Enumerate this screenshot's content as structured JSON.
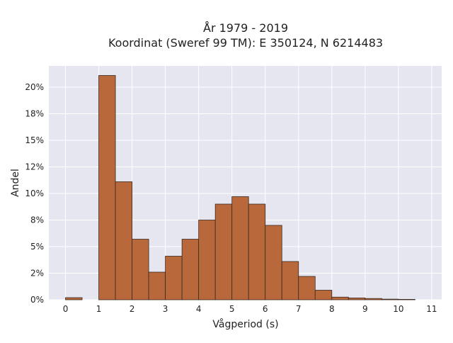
{
  "chart_data": {
    "type": "bar",
    "title_line1": "År 1979 - 2019",
    "title_line2": "Koordinat (Sweref 99 TM): E 350124, N 6214483",
    "xlabel": "Vågperiod (s)",
    "ylabel": "Andel",
    "xlim": [
      -0.5,
      11.3
    ],
    "ylim": [
      0,
      0.22
    ],
    "x_ticks": [
      0,
      1,
      2,
      3,
      4,
      5,
      6,
      7,
      8,
      9,
      10,
      11
    ],
    "x_tick_labels": [
      "0",
      "1",
      "2",
      "3",
      "4",
      "5",
      "6",
      "7",
      "8",
      "9",
      "10",
      "11"
    ],
    "y_ticks": [
      0,
      0.025,
      0.05,
      0.075,
      0.1,
      0.125,
      0.15,
      0.175,
      0.2
    ],
    "y_tick_labels": [
      "0%",
      "2%",
      "5%",
      "8%",
      "10%",
      "12%",
      "15%",
      "18%",
      "20%"
    ],
    "bin_width": 0.5,
    "bins": [
      {
        "start": 0.0,
        "value": 0.002
      },
      {
        "start": 1.0,
        "value": 0.211
      },
      {
        "start": 1.5,
        "value": 0.111
      },
      {
        "start": 2.0,
        "value": 0.057
      },
      {
        "start": 2.5,
        "value": 0.026
      },
      {
        "start": 3.0,
        "value": 0.041
      },
      {
        "start": 3.5,
        "value": 0.057
      },
      {
        "start": 4.0,
        "value": 0.075
      },
      {
        "start": 4.5,
        "value": 0.09
      },
      {
        "start": 5.0,
        "value": 0.097
      },
      {
        "start": 5.5,
        "value": 0.09
      },
      {
        "start": 6.0,
        "value": 0.07
      },
      {
        "start": 6.5,
        "value": 0.036
      },
      {
        "start": 7.0,
        "value": 0.022
      },
      {
        "start": 7.5,
        "value": 0.009
      },
      {
        "start": 8.0,
        "value": 0.0025
      },
      {
        "start": 8.5,
        "value": 0.0017
      },
      {
        "start": 9.0,
        "value": 0.0012
      },
      {
        "start": 9.5,
        "value": 0.0006
      },
      {
        "start": 10.0,
        "value": 0.0004
      }
    ],
    "grid": true,
    "colors": {
      "bar_fill": "#b9683b",
      "bar_stroke": "#3a2a20",
      "plot_bg": "#e6e6f0",
      "grid": "#ffffff"
    }
  }
}
